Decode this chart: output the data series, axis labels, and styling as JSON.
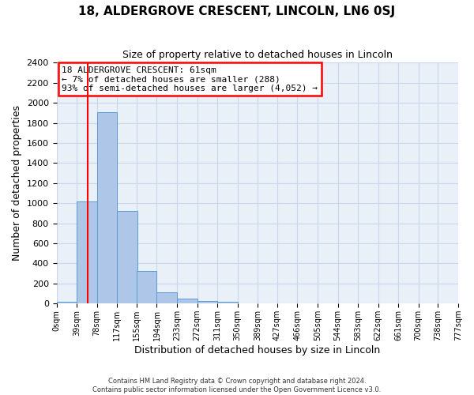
{
  "title": "18, ALDERGROVE CRESCENT, LINCOLN, LN6 0SJ",
  "subtitle": "Size of property relative to detached houses in Lincoln",
  "xlabel": "Distribution of detached houses by size in Lincoln",
  "ylabel": "Number of detached properties",
  "bin_labels": [
    "0sqm",
    "39sqm",
    "78sqm",
    "117sqm",
    "155sqm",
    "194sqm",
    "233sqm",
    "272sqm",
    "311sqm",
    "350sqm",
    "389sqm",
    "427sqm",
    "466sqm",
    "505sqm",
    "544sqm",
    "583sqm",
    "622sqm",
    "661sqm",
    "700sqm",
    "738sqm",
    "777sqm"
  ],
  "bin_edges": [
    0,
    39,
    78,
    117,
    155,
    194,
    233,
    272,
    311,
    350,
    389,
    427,
    466,
    505,
    544,
    583,
    622,
    661,
    700,
    738,
    777
  ],
  "bar_heights": [
    20,
    1020,
    1910,
    920,
    325,
    110,
    50,
    25,
    15,
    0,
    0,
    0,
    0,
    0,
    0,
    0,
    0,
    0,
    0,
    0
  ],
  "bar_color": "#aec6e8",
  "bar_edge_color": "#5b9bd5",
  "ylim": [
    0,
    2400
  ],
  "yticks": [
    0,
    200,
    400,
    600,
    800,
    1000,
    1200,
    1400,
    1600,
    1800,
    2000,
    2200,
    2400
  ],
  "red_line_x": 61,
  "annotation_title": "18 ALDERGROVE CRESCENT: 61sqm",
  "annotation_line1": "← 7% of detached houses are smaller (288)",
  "annotation_line2": "93% of semi-detached houses are larger (4,052) →",
  "grid_color": "#c8d8ea",
  "background_color": "#eaf0f8",
  "footer_line1": "Contains HM Land Registry data © Crown copyright and database right 2024.",
  "footer_line2": "Contains public sector information licensed under the Open Government Licence v3.0."
}
